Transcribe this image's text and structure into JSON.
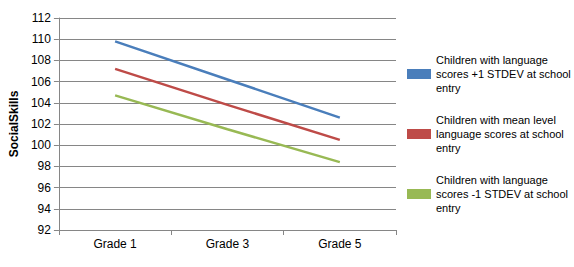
{
  "chart_data": {
    "type": "line",
    "ylabel": "SocialSkills",
    "categories": [
      "Grade 1",
      "Grade 3",
      "Grade 5"
    ],
    "series": [
      {
        "name": "Children with language scores +1 STDEV at school entry",
        "color": "#4a7ebb",
        "values": [
          109.8,
          106.2,
          102.6
        ]
      },
      {
        "name": "Children with mean level language scores at school entry",
        "color": "#be4b48",
        "values": [
          107.2,
          103.8,
          100.5
        ]
      },
      {
        "name": "Children with language scores -1 STDEV at school entry",
        "color": "#98b954",
        "values": [
          104.7,
          101.5,
          98.4
        ]
      }
    ],
    "ylim": [
      92,
      112
    ],
    "yticks": [
      92,
      94,
      96,
      98,
      100,
      102,
      104,
      106,
      108,
      110,
      112
    ],
    "grid": true,
    "legend": "right",
    "marker": "none"
  }
}
